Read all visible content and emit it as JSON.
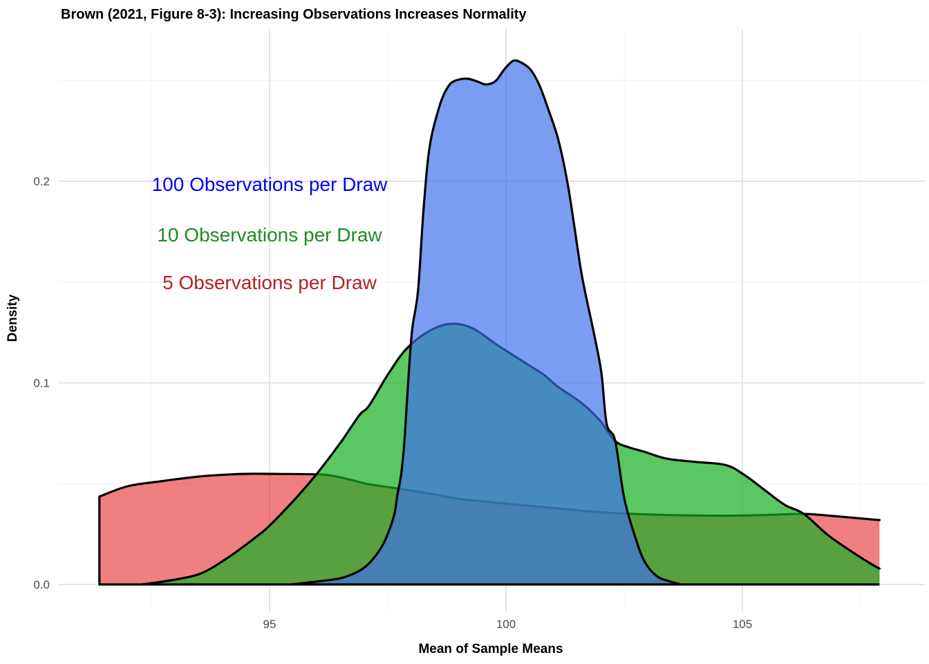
{
  "chart_data": {
    "type": "area",
    "subtype": "density",
    "title": "Brown (2021, Figure 8-3): Increasing Observations Increases Normality",
    "xlabel": "Mean of Sample Means",
    "ylabel": "Density",
    "x_range": [
      90.54,
      108.83
    ],
    "y_range": [
      0,
      0.2755
    ],
    "grid": {
      "major_color": "#e3e3e3",
      "minor_color": "#f1f1f1",
      "shown": true
    },
    "x_axis": {
      "major_ticks": [
        {
          "value": 95,
          "label": "95"
        },
        {
          "value": 100,
          "label": "100"
        },
        {
          "value": 105,
          "label": "105"
        }
      ],
      "minor_ticks": [
        92.5,
        97.5,
        102.5,
        107.5
      ]
    },
    "y_axis": {
      "major_ticks": [
        {
          "value": 0.0,
          "label": "0.0"
        },
        {
          "value": 0.1,
          "label": "0.1"
        },
        {
          "value": 0.2,
          "label": "0.2"
        }
      ],
      "minor_ticks": [
        0.05,
        0.15,
        0.25
      ]
    },
    "series": [
      {
        "name": "5 Observations per Draw",
        "observations_per_draw": 5,
        "fill": "rgba(230,43,43,0.60)",
        "outline": "#000000",
        "left_edge_vertical": true,
        "right_edge_vertical": true,
        "points": [
          [
            91.4,
            0.0436
          ],
          [
            92.0,
            0.0487
          ],
          [
            92.7,
            0.0512
          ],
          [
            93.5,
            0.0535
          ],
          [
            94.1,
            0.0545
          ],
          [
            94.6,
            0.0549
          ],
          [
            95.3,
            0.0548
          ],
          [
            96.0,
            0.0546
          ],
          [
            96.3,
            0.054
          ],
          [
            96.7,
            0.052
          ],
          [
            97.1,
            0.0497
          ],
          [
            97.6,
            0.048
          ],
          [
            98.2,
            0.0458
          ],
          [
            99.0,
            0.0425
          ],
          [
            99.6,
            0.041
          ],
          [
            100.4,
            0.0392
          ],
          [
            101.2,
            0.0375
          ],
          [
            102.0,
            0.0358
          ],
          [
            102.8,
            0.0349
          ],
          [
            103.7,
            0.0343
          ],
          [
            104.7,
            0.0341
          ],
          [
            105.6,
            0.0345
          ],
          [
            106.3,
            0.035
          ],
          [
            107.0,
            0.0338
          ],
          [
            107.9,
            0.0319
          ]
        ]
      },
      {
        "name": "10 Observations per Draw",
        "observations_per_draw": 10,
        "fill": "rgba(22,175,34,0.70)",
        "outline": "#000000",
        "left_edge_vertical": false,
        "right_edge_vertical": true,
        "points": [
          [
            92.3,
            0.0
          ],
          [
            93.0,
            0.0024
          ],
          [
            93.55,
            0.0055
          ],
          [
            94.1,
            0.013
          ],
          [
            94.7,
            0.0233
          ],
          [
            95.0,
            0.0292
          ],
          [
            95.6,
            0.0439
          ],
          [
            96.0,
            0.0549
          ],
          [
            96.5,
            0.0703
          ],
          [
            96.9,
            0.084
          ],
          [
            97.1,
            0.0885
          ],
          [
            97.5,
            0.104
          ],
          [
            97.9,
            0.117
          ],
          [
            98.4,
            0.126
          ],
          [
            98.85,
            0.1293
          ],
          [
            99.3,
            0.127
          ],
          [
            99.8,
            0.119
          ],
          [
            100.4,
            0.11
          ],
          [
            100.8,
            0.104
          ],
          [
            101.1,
            0.098
          ],
          [
            101.6,
            0.09
          ],
          [
            102.0,
            0.081
          ],
          [
            102.3,
            0.0713
          ],
          [
            102.6,
            0.068
          ],
          [
            102.9,
            0.066
          ],
          [
            103.4,
            0.0624
          ],
          [
            104.0,
            0.0608
          ],
          [
            104.65,
            0.0592
          ],
          [
            105.05,
            0.0542
          ],
          [
            105.5,
            0.0463
          ],
          [
            105.9,
            0.0394
          ],
          [
            106.3,
            0.035
          ],
          [
            106.8,
            0.0247
          ],
          [
            107.3,
            0.0165
          ],
          [
            107.75,
            0.0098
          ],
          [
            107.9,
            0.0079
          ]
        ]
      },
      {
        "name": "100 Observations per Draw",
        "observations_per_draw": 100,
        "fill": "rgba(60,110,235,0.68)",
        "outline": "#000000",
        "left_edge_vertical": false,
        "right_edge_vertical": false,
        "points": [
          [
            95.45,
            0.0
          ],
          [
            96.1,
            0.0017
          ],
          [
            96.55,
            0.0034
          ],
          [
            96.95,
            0.0075
          ],
          [
            97.2,
            0.013
          ],
          [
            97.4,
            0.0199
          ],
          [
            97.55,
            0.0281
          ],
          [
            97.65,
            0.036
          ],
          [
            97.7,
            0.0439
          ],
          [
            97.78,
            0.0542
          ],
          [
            97.85,
            0.0703
          ],
          [
            97.92,
            0.096
          ],
          [
            98.01,
            0.1252
          ],
          [
            98.14,
            0.1458
          ],
          [
            98.26,
            0.187
          ],
          [
            98.39,
            0.2178
          ],
          [
            98.61,
            0.2384
          ],
          [
            98.8,
            0.2477
          ],
          [
            99.0,
            0.2504
          ],
          [
            99.2,
            0.2508
          ],
          [
            99.4,
            0.2494
          ],
          [
            99.58,
            0.248
          ],
          [
            99.78,
            0.2497
          ],
          [
            99.97,
            0.2556
          ],
          [
            100.15,
            0.2597
          ],
          [
            100.31,
            0.259
          ],
          [
            100.51,
            0.2556
          ],
          [
            100.7,
            0.248
          ],
          [
            100.89,
            0.236
          ],
          [
            101.1,
            0.2212
          ],
          [
            101.29,
            0.2007
          ],
          [
            101.43,
            0.1801
          ],
          [
            101.61,
            0.1527
          ],
          [
            101.87,
            0.1235
          ],
          [
            102.02,
            0.1046
          ],
          [
            102.13,
            0.0796
          ],
          [
            102.31,
            0.0713
          ],
          [
            102.5,
            0.0429
          ],
          [
            102.75,
            0.0223
          ],
          [
            102.94,
            0.011
          ],
          [
            103.19,
            0.0041
          ],
          [
            103.44,
            0.0017
          ],
          [
            103.7,
            0.0
          ]
        ]
      }
    ],
    "annotations": [
      {
        "text": "100 Observations per Draw",
        "color": "#0000EE",
        "x": 95,
        "y": 0.1986
      },
      {
        "text": "10 Observations per Draw",
        "color": "#1F8B1F",
        "x": 95,
        "y": 0.1736
      },
      {
        "text": "5 Observations per Draw",
        "color": "#B22222",
        "x": 95,
        "y": 0.1499
      }
    ],
    "baseline_color": "#000000"
  }
}
